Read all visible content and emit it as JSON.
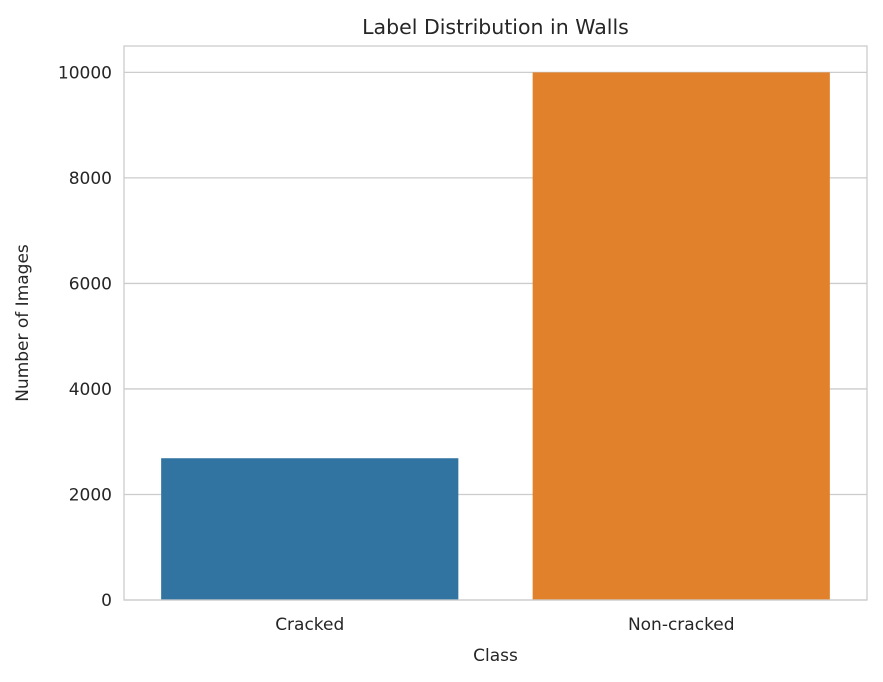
{
  "chart_data": {
    "type": "bar",
    "title": "Label Distribution in Walls",
    "xlabel": "Class",
    "ylabel": "Number of Images",
    "categories": [
      "Cracked",
      "Non-cracked"
    ],
    "values": [
      2687,
      10000
    ],
    "colors": [
      "#3274a1",
      "#e1812c"
    ],
    "ylim": [
      0,
      10500
    ],
    "yticks": [
      0,
      2000,
      4000,
      6000,
      8000,
      10000
    ],
    "ytick_labels": [
      "0",
      "2000",
      "4000",
      "6000",
      "8000",
      "10000"
    ],
    "grid": true,
    "grid_color": "#cccccc",
    "legend": "none"
  }
}
